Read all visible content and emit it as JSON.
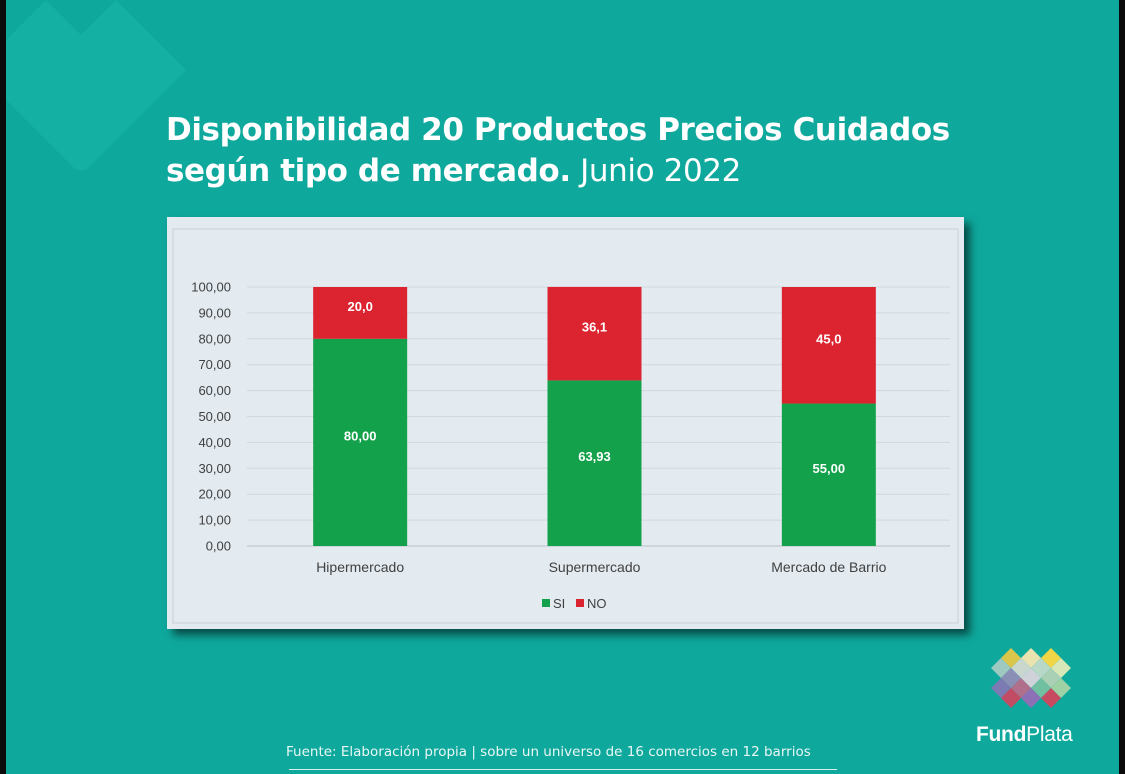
{
  "title": {
    "line1": "Disponibilidad 20 Productos Precios Cuidados",
    "line2_bold": "según tipo de mercado.",
    "line2_light": " Junio 2022"
  },
  "source": "Fuente: Elaboración propia | sobre un universo de 16 comercios en 12 barrios",
  "logo": {
    "part1": "Fund",
    "part2": "Plata",
    "icon": "fundplata-logo-icon"
  },
  "colors": {
    "background": "#0fa89c",
    "si": "#14a14b",
    "no": "#dc2431",
    "card": "#e3ebf1"
  },
  "chart_data": {
    "type": "bar",
    "stacked": true,
    "categories": [
      "Hipermercado",
      "Supermercado",
      "Mercado de Barrio"
    ],
    "series": [
      {
        "name": "SI",
        "values": [
          80.0,
          63.93,
          55.0
        ],
        "labels": [
          "80,00",
          "63,93",
          "55,00"
        ],
        "color": "#14a14b"
      },
      {
        "name": "NO",
        "values": [
          20.0,
          36.1,
          45.0
        ],
        "labels": [
          "20,0",
          "36,1",
          "45,0"
        ],
        "color": "#dc2431"
      }
    ],
    "ylim": [
      0,
      100
    ],
    "yticks": [
      "0,00",
      "10,00",
      "20,00",
      "30,00",
      "40,00",
      "50,00",
      "60,00",
      "70,00",
      "80,00",
      "90,00",
      "100,00"
    ],
    "legend_position": "bottom",
    "grid": true
  }
}
